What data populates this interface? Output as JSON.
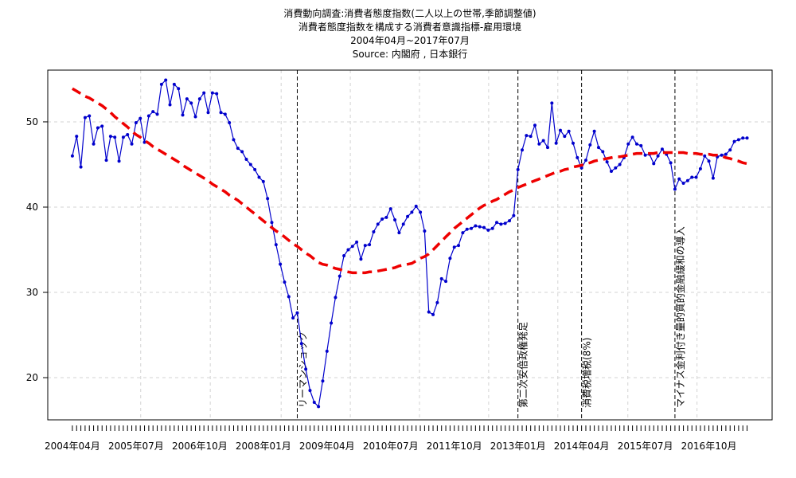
{
  "chart_data": {
    "type": "line",
    "title_lines": [
      "消費動向調査:消費者態度指数(二人以上の世帯,季節調整値)",
      "消費者態度指数を構成する消費者意識指標-雇用環境",
      "2004年04月~2017年07月",
      "Source: 内閣府 , 日本銀行"
    ],
    "categories": [
      "2004年04月",
      null,
      null,
      null,
      null,
      null,
      null,
      null,
      null,
      null,
      null,
      null,
      null,
      null,
      null,
      "2005年07月",
      null,
      null,
      null,
      null,
      null,
      null,
      null,
      null,
      null,
      null,
      null,
      null,
      null,
      null,
      "2006年10月",
      null,
      null,
      null,
      null,
      null,
      null,
      null,
      null,
      null,
      null,
      null,
      null,
      null,
      null,
      "2008年01月",
      null,
      null,
      null,
      null,
      null,
      null,
      null,
      null,
      null,
      null,
      null,
      null,
      null,
      null,
      "2009年04月",
      null,
      null,
      null,
      null,
      null,
      null,
      null,
      null,
      null,
      null,
      null,
      null,
      null,
      null,
      "2010年07月",
      null,
      null,
      null,
      null,
      null,
      null,
      null,
      null,
      null,
      null,
      null,
      null,
      null,
      null,
      "2011年10月",
      null,
      null,
      null,
      null,
      null,
      null,
      null,
      null,
      null,
      null,
      null,
      null,
      null,
      null,
      "2013年01月",
      null,
      null,
      null,
      null,
      null,
      null,
      null,
      null,
      null,
      null,
      null,
      null,
      null,
      null,
      "2014年04月",
      null,
      null,
      null,
      null,
      null,
      null,
      null,
      null,
      null,
      null,
      null,
      null,
      null,
      null,
      "2015年07月",
      null,
      null,
      null,
      null,
      null,
      null,
      null,
      null,
      null,
      null,
      null,
      null,
      null,
      null,
      "2016年10月",
      null,
      null,
      null,
      null,
      null,
      null,
      null,
      null,
      null
    ],
    "series": [
      {
        "color": "#0000cc",
        "style": "line-points",
        "values": [
          46.0,
          48.3,
          44.7,
          50.5,
          50.7,
          47.4,
          49.3,
          49.5,
          45.5,
          48.3,
          48.2,
          45.4,
          48.2,
          48.5,
          47.4,
          49.9,
          50.4,
          47.6,
          50.7,
          51.2,
          50.9,
          54.4,
          54.9,
          52.0,
          54.4,
          53.9,
          50.8,
          52.7,
          52.2,
          50.6,
          52.7,
          53.4,
          51.1,
          53.4,
          53.3,
          51.1,
          50.9,
          49.9,
          47.9,
          46.9,
          46.5,
          45.6,
          45.0,
          44.4,
          43.5,
          43.0,
          41.0,
          38.2,
          35.6,
          33.3,
          31.2,
          29.5,
          27.0,
          27.6,
          24.0,
          21.0,
          18.5,
          17.1,
          16.6,
          19.6,
          23.1,
          26.4,
          29.4,
          31.9,
          34.3,
          35.0,
          35.4,
          35.9,
          33.9,
          35.5,
          35.6,
          37.1,
          38.0,
          38.6,
          38.8,
          39.8,
          38.5,
          37.0,
          38.0,
          38.9,
          39.4,
          40.1,
          39.4,
          37.2,
          27.7,
          27.4,
          28.8,
          31.6,
          31.3,
          34.0,
          35.3,
          35.5,
          37.0,
          37.4,
          37.5,
          37.8,
          37.7,
          37.6,
          37.3,
          37.5,
          38.2,
          38.0,
          38.1,
          38.4,
          39.0,
          44.4,
          46.7,
          48.4,
          48.3,
          49.6,
          47.4,
          47.8,
          47.0,
          52.2,
          47.5,
          49.0,
          48.3,
          48.9,
          47.5,
          45.8,
          44.6,
          45.5,
          47.3,
          48.9,
          47.0,
          46.5,
          45.3,
          44.2,
          44.6,
          45.0,
          45.8,
          47.4,
          48.2,
          47.4,
          47.2,
          46.1,
          46.2,
          45.1,
          46.0,
          46.8,
          46.2,
          45.2,
          42.1,
          43.3,
          42.8,
          43.1,
          43.5,
          43.5,
          44.5,
          46.0,
          45.4,
          43.4,
          45.9,
          46.1,
          46.2,
          46.7,
          47.7,
          47.9,
          48.1,
          48.1
        ]
      },
      {
        "color": "#ee0000",
        "style": "dashed",
        "values": [
          53.9,
          53.6,
          53.3,
          53.0,
          52.8,
          52.5,
          52.2,
          51.9,
          51.5,
          51.1,
          50.6,
          50.2,
          49.8,
          49.4,
          48.9,
          48.5,
          48.2,
          47.8,
          47.5,
          47.1,
          46.8,
          46.5,
          46.2,
          45.9,
          45.6,
          45.3,
          44.9,
          44.6,
          44.3,
          44.0,
          43.7,
          43.4,
          43.1,
          42.7,
          42.4,
          42.1,
          41.8,
          41.4,
          41.1,
          40.8,
          40.4,
          40.0,
          39.6,
          39.2,
          38.8,
          38.4,
          38.0,
          37.6,
          37.2,
          36.9,
          36.5,
          36.1,
          35.7,
          35.4,
          35.0,
          34.6,
          34.3,
          33.9,
          33.5,
          33.3,
          33.2,
          33.0,
          32.8,
          32.7,
          32.5,
          32.4,
          32.3,
          32.3,
          32.3,
          32.3,
          32.4,
          32.4,
          32.5,
          32.6,
          32.7,
          32.8,
          32.9,
          33.1,
          33.2,
          33.3,
          33.4,
          33.7,
          34.0,
          34.2,
          34.5,
          35.0,
          35.5,
          36.0,
          36.5,
          37.0,
          37.5,
          37.9,
          38.3,
          38.7,
          39.1,
          39.5,
          39.9,
          40.2,
          40.4,
          40.7,
          40.9,
          41.2,
          41.5,
          41.8,
          42.0,
          42.3,
          42.5,
          42.7,
          42.9,
          43.1,
          43.3,
          43.5,
          43.7,
          43.9,
          44.1,
          44.2,
          44.4,
          44.5,
          44.7,
          44.8,
          44.9,
          45.1,
          45.2,
          45.4,
          45.5,
          45.6,
          45.7,
          45.8,
          45.9,
          45.9,
          46.0,
          46.1,
          46.2,
          46.3,
          46.3,
          46.3,
          46.3,
          46.3,
          46.4,
          46.4,
          46.4,
          46.4,
          46.4,
          46.4,
          46.4,
          46.3,
          46.3,
          46.3,
          46.2,
          46.2,
          46.2,
          46.1,
          46.1,
          46.0,
          45.8,
          45.7,
          45.5,
          45.4,
          45.2,
          45.1
        ]
      }
    ],
    "annotations": [
      {
        "x": 53,
        "label": "リーマンショック"
      },
      {
        "x": 105,
        "label": "第二次安倍政権発足"
      },
      {
        "x": 120,
        "label": "消費税増税(8%)"
      },
      {
        "x": 142,
        "label": "マイナス金利付き量的質的金融緩和の導入"
      }
    ],
    "xlim": [
      -5.8,
      164.9
    ],
    "xgrid": [
      16.1,
      32.5,
      49.2,
      65.5,
      81.8,
      98.1,
      114.4,
      130.9,
      147.2
    ],
    "ylim": [
      15.05,
      56.07
    ],
    "yticks": [
      20,
      30,
      40,
      50
    ],
    "grid": true
  }
}
